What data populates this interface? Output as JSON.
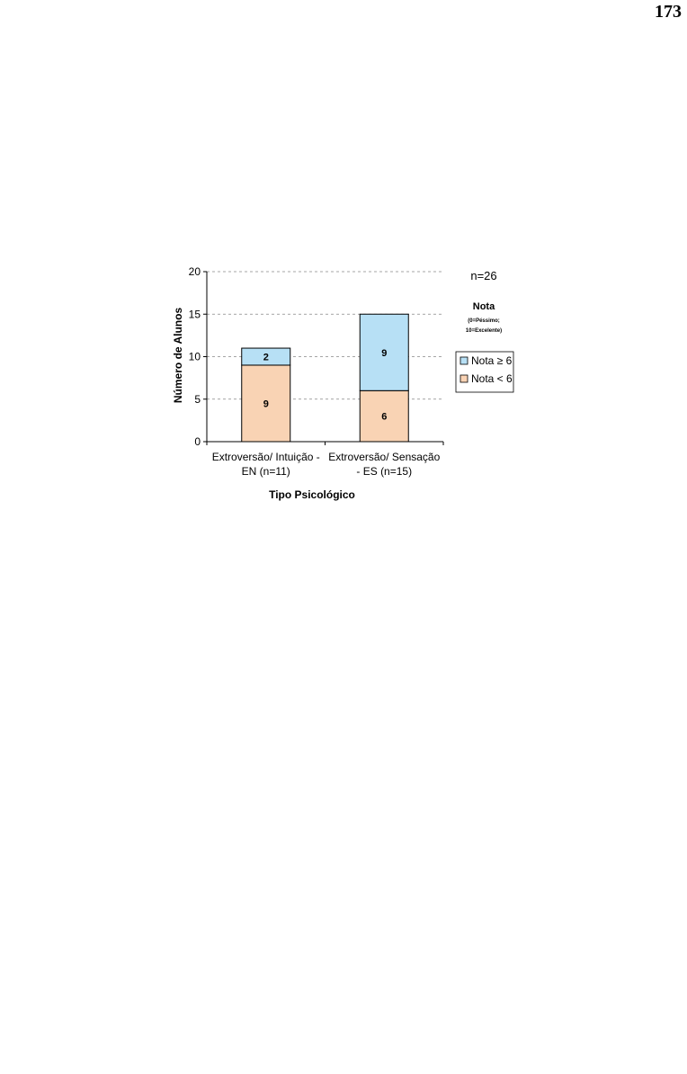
{
  "page_number": "173",
  "chart_data": {
    "type": "bar",
    "stacked": true,
    "categories": [
      [
        "Extroversão/ Intuição -",
        "EN (n=11)"
      ],
      [
        "Extroversão/ Sensação",
        "- ES (n=15)"
      ]
    ],
    "series": [
      {
        "name": "Nota < 6",
        "values": [
          9,
          6
        ],
        "color": "#f9d3b4"
      },
      {
        "name": "Nota ≥ 6",
        "values": [
          2,
          9
        ],
        "color": "#b7e0f5"
      }
    ],
    "xlabel": "Tipo Psicológico",
    "ylabel": "Número de Alunos",
    "ylim": [
      0,
      20
    ],
    "yticks": [
      0,
      5,
      10,
      15,
      20
    ],
    "grid": true,
    "legend": {
      "position": "right",
      "note": "n=26",
      "title": "Nota",
      "subtitle": [
        "(0=Péssimo;",
        "10=Excelente)"
      ],
      "order": [
        "Nota ≥ 6",
        "Nota < 6"
      ]
    }
  }
}
